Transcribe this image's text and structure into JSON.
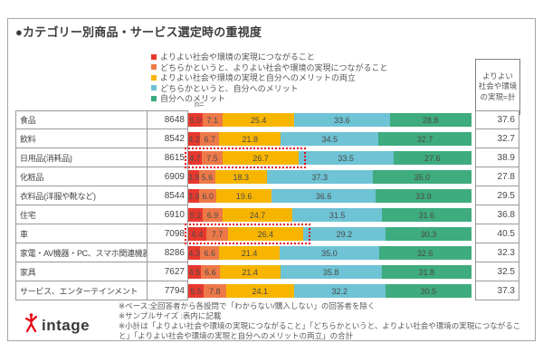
{
  "title": "●カテゴリー別商品・サービス選定時の重視度",
  "n_header": "n=",
  "total_header": "よりよい\n社会や環境\nの実現=計",
  "legend": {
    "items": [
      {
        "label": "よりよい社会や環境の実現につながること",
        "color": "#e8382d"
      },
      {
        "label": "どちらかというと、よりよい社会や環境の実現につながること",
        "color": "#ee7948"
      },
      {
        "label": "よりよい社会や環境の実現と自分へのメリットの両立",
        "color": "#f8b500"
      },
      {
        "label": "どちらかというと、自分へのメリット",
        "color": "#6ec3d4"
      },
      {
        "label": "自分へのメリット",
        "color": "#3eac7e"
      }
    ]
  },
  "chart_data": {
    "type": "bar",
    "stacked": true,
    "orientation": "horizontal",
    "unit": "%",
    "xlim": [
      0,
      100
    ],
    "categories": [
      "食品",
      "飲料",
      "日用品(消耗品)",
      "化粧品",
      "衣料品(洋服や靴など)",
      "住宅",
      "車",
      "家電・AV機器・PC、スマホ関連機器",
      "家具",
      "サービス、エンターテインメント"
    ],
    "sample_sizes": [
      8648,
      8542,
      8615,
      6909,
      8544,
      6910,
      7098,
      8286,
      7627,
      7794
    ],
    "series": [
      {
        "name": "よりよい社会や環境の実現につながること",
        "color": "#e8382d",
        "values": [
          5.0,
          4.2,
          4.7,
          3.9,
          3.9,
          5.2,
          6.4,
          4.3,
          4.5,
          5.5
        ]
      },
      {
        "name": "どちらかというと、よりよい社会や環境の実現につながること",
        "color": "#ee7948",
        "values": [
          7.1,
          6.7,
          7.5,
          5.6,
          6.0,
          6.9,
          7.7,
          6.6,
          6.6,
          7.8
        ]
      },
      {
        "name": "よりよい社会や環境の実現と自分へのメリットの両立",
        "color": "#f8b500",
        "values": [
          25.4,
          21.8,
          26.7,
          18.3,
          19.6,
          24.7,
          26.4,
          21.4,
          21.4,
          24.1
        ]
      },
      {
        "name": "どちらかというと、自分へのメリット",
        "color": "#6ec3d4",
        "values": [
          33.6,
          34.5,
          33.5,
          37.3,
          36.6,
          31.5,
          29.2,
          35.0,
          35.8,
          32.2
        ]
      },
      {
        "name": "自分へのメリット",
        "color": "#3eac7e",
        "values": [
          28.8,
          32.7,
          27.6,
          35.0,
          33.9,
          31.6,
          30.3,
          32.6,
          31.8,
          30.5
        ]
      }
    ],
    "totals": [
      37.6,
      32.7,
      38.9,
      27.8,
      29.5,
      36.8,
      40.5,
      32.3,
      32.5,
      37.3
    ],
    "highlighted_rows": [
      2,
      6
    ]
  },
  "footnotes": [
    "※ベース:全回答者から各設問で「わからない/購入しない」の回答者を除く",
    "※サンプルサイズ :表内に記載",
    "※小計は「よりよい社会や環境の実現につながること」「どちらかというと、よりよい社会や環境の実現につながること」「よりよい社会や環境の実現と自分へのメリットの両立」の合計"
  ],
  "logo": {
    "text": "intage"
  },
  "colors": {
    "highlight": "#e60012",
    "cell_border": "#999999",
    "value_text": "#4a4a4a"
  }
}
